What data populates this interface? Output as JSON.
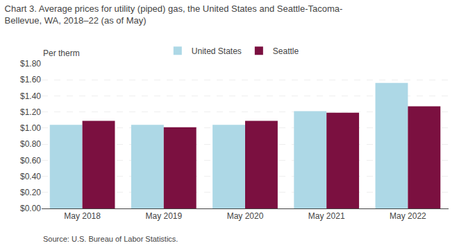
{
  "chart_data": {
    "type": "bar",
    "title": "Chart 3. Average prices for utility (piped) gas, the United States and Seattle-Tacoma-\nBellevue, WA, 2018–22 (as of May)",
    "ylabel": "Per therm",
    "source": "Source: U.S. Bureau of Labor Statistics.",
    "categories": [
      "May 2018",
      "May 2019",
      "May 2020",
      "May 2021",
      "May 2022"
    ],
    "series": [
      {
        "name": "United States",
        "color": "#add8e6",
        "values": [
          1.04,
          1.04,
          1.04,
          1.21,
          1.56
        ]
      },
      {
        "name": "Seattle",
        "color": "#7b1040",
        "values": [
          1.09,
          1.01,
          1.09,
          1.19,
          1.27
        ]
      }
    ],
    "ylim": [
      0,
      1.8
    ],
    "yticks": [
      {
        "value": 0.0,
        "label": "$0.00"
      },
      {
        "value": 0.2,
        "label": "$0.20"
      },
      {
        "value": 0.4,
        "label": "$0.40"
      },
      {
        "value": 0.6,
        "label": "$0.60"
      },
      {
        "value": 0.8,
        "label": "$0.80"
      },
      {
        "value": 1.0,
        "label": "$1.00"
      },
      {
        "value": 1.2,
        "label": "$1.20"
      },
      {
        "value": 1.4,
        "label": "$1.40"
      },
      {
        "value": 1.6,
        "label": "$1.60"
      },
      {
        "value": 1.8,
        "label": "$1.80"
      }
    ],
    "grid": true,
    "legend": "top"
  }
}
